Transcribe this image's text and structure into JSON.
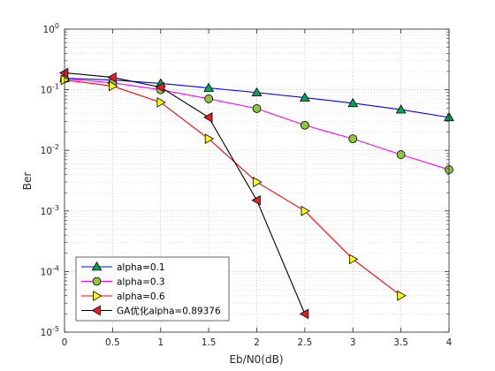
{
  "chart_data": {
    "type": "line",
    "title": "",
    "xlabel": "Eb/N0(dB)",
    "ylabel": "Ber",
    "x_scale": "linear",
    "y_scale": "log",
    "xlim": [
      0,
      4
    ],
    "ylim": [
      1e-05,
      1
    ],
    "x_ticks": [
      0,
      0.5,
      1,
      1.5,
      2,
      2.5,
      3,
      3.5,
      4
    ],
    "x_tick_labels": [
      "0",
      "0.5",
      "1",
      "1.5",
      "2",
      "2.5",
      "3",
      "3.5",
      "4"
    ],
    "y_ticks": [
      {
        "value": 1,
        "mantissa": "10",
        "exponent": "0"
      },
      {
        "value": 0.1,
        "mantissa": "10",
        "exponent": "-1"
      },
      {
        "value": 0.01,
        "mantissa": "10",
        "exponent": "-2"
      },
      {
        "value": 0.001,
        "mantissa": "10",
        "exponent": "-3"
      },
      {
        "value": 0.0001,
        "mantissa": "10",
        "exponent": "-4"
      },
      {
        "value": 1e-05,
        "mantissa": "10",
        "exponent": "-5"
      }
    ],
    "grid": true,
    "minor_grid": true,
    "legend_location": "bottom-left",
    "series": [
      {
        "name": "alpha=0.1",
        "color": "#0000ff",
        "marker": "triangle-up",
        "marker_fill": "#00a651",
        "x": [
          0,
          0.5,
          1,
          1.5,
          2,
          2.5,
          3,
          3.5,
          4
        ],
        "y": [
          0.155,
          0.145,
          0.127,
          0.107,
          0.09,
          0.074,
          0.06,
          0.047,
          0.035
        ]
      },
      {
        "name": "alpha=0.3",
        "color": "#ff00ff",
        "marker": "circle",
        "marker_fill": "#8dc63f",
        "x": [
          0,
          0.5,
          1,
          1.5,
          2,
          2.5,
          3,
          3.5,
          4
        ],
        "y": [
          0.152,
          0.13,
          0.1,
          0.071,
          0.049,
          0.026,
          0.0155,
          0.0085,
          0.0048
        ]
      },
      {
        "name": "alpha=0.6",
        "color": "#ff0000",
        "marker": "triangle-right",
        "marker_fill": "#ffff00",
        "x": [
          0,
          0.5,
          1,
          1.5,
          2,
          2.5,
          3,
          3.5
        ],
        "y": [
          0.145,
          0.115,
          0.062,
          0.0155,
          0.003,
          0.001,
          0.00016,
          4e-05
        ]
      },
      {
        "name": "GA优化alpha=0.89376",
        "color": "#000000",
        "marker": "triangle-left",
        "marker_fill": "#ed1c24",
        "x": [
          0,
          0.5,
          1,
          1.5,
          2,
          2.5
        ],
        "y": [
          0.19,
          0.16,
          0.11,
          0.035,
          0.0015,
          2e-05
        ]
      }
    ]
  }
}
